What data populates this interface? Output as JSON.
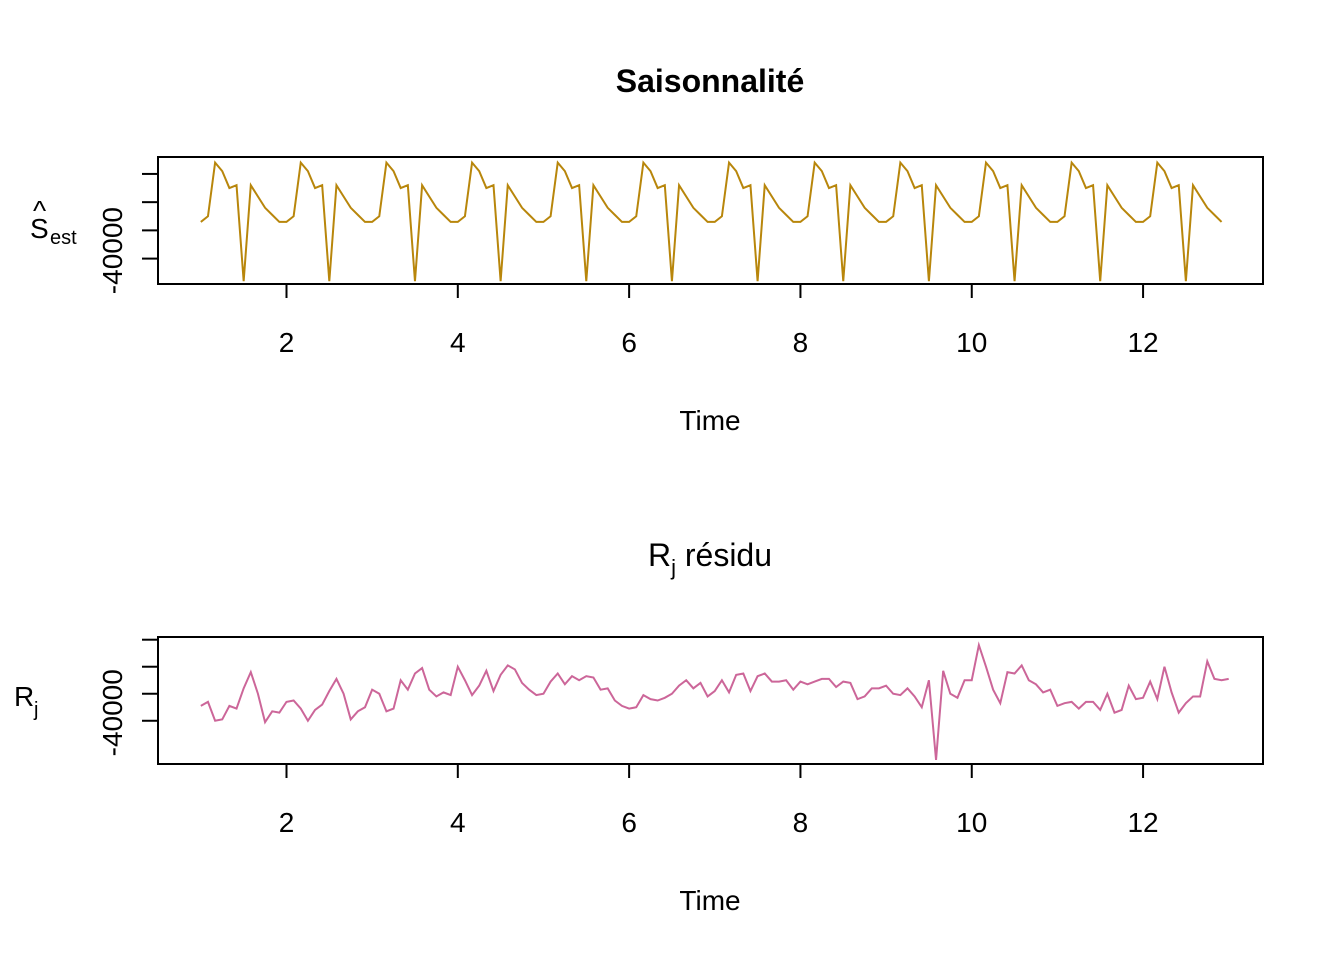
{
  "chart_data": [
    {
      "type": "line",
      "title": "Saisonnalité",
      "title_bold": true,
      "xlabel": "Time",
      "ylabel_main": "S",
      "ylabel_hat": "^",
      "ylabel_sub": "est",
      "xlim": [
        0.5,
        13.4
      ],
      "ylim": [
        -49000,
        -4000
      ],
      "xticks": [
        2,
        4,
        6,
        8,
        10,
        12
      ],
      "xtick_labels": [
        "2",
        "4",
        "6",
        "8",
        "10",
        "12"
      ],
      "yticks": [
        -40000,
        -30000,
        -20000,
        -10000
      ],
      "ytick_labels": [
        "-40000",
        "",
        "",
        ""
      ],
      "color": "#b8860b",
      "period": [
        -27000,
        -25000,
        -6000,
        -9000,
        -15000,
        -14000,
        -48000,
        -14000,
        -18000,
        -22000,
        -24500,
        -27000
      ],
      "x_start": 1.0,
      "x_step": 0.08333,
      "n_periods": 12,
      "n_points": 144,
      "grid": false
    },
    {
      "type": "line",
      "title_main": "R",
      "title_sub": "j",
      "title_rest": " résidu",
      "xlabel": "Time",
      "ylabel_main": "R",
      "ylabel_sub": "j",
      "xlim": [
        0.5,
        13.4
      ],
      "ylim": [
        -56000,
        -9000
      ],
      "xticks": [
        2,
        4,
        6,
        8,
        10,
        12
      ],
      "xtick_labels": [
        "2",
        "4",
        "6",
        "8",
        "10",
        "12"
      ],
      "yticks": [
        -40000,
        -30000,
        -20000,
        -10000
      ],
      "ytick_labels": [
        "-40000",
        "",
        "",
        ""
      ],
      "color": "#cc6699",
      "x_start": 1.0,
      "x_step": 0.08333,
      "values": [
        -34500,
        -33000,
        -40000,
        -39500,
        -34500,
        -35500,
        -28000,
        -22000,
        -30000,
        -40500,
        -36500,
        -37000,
        -33000,
        -32500,
        -35500,
        -40000,
        -36000,
        -34000,
        -29000,
        -24500,
        -30000,
        -39500,
        -36500,
        -35000,
        -28500,
        -30000,
        -36500,
        -35500,
        -25000,
        -28500,
        -22500,
        -20500,
        -28500,
        -31000,
        -29500,
        -30500,
        -20000,
        -25000,
        -30500,
        -27000,
        -21500,
        -29000,
        -23000,
        -19500,
        -21000,
        -26000,
        -28500,
        -30500,
        -30000,
        -25500,
        -22500,
        -26500,
        -23500,
        -25000,
        -23500,
        -24000,
        -28500,
        -28000,
        -32500,
        -34500,
        -35500,
        -35000,
        -30500,
        -32000,
        -32500,
        -31500,
        -30000,
        -27000,
        -25000,
        -28000,
        -26000,
        -31000,
        -29000,
        -25000,
        -29500,
        -23000,
        -22500,
        -29000,
        -23500,
        -22500,
        -25500,
        -25500,
        -25000,
        -28500,
        -25500,
        -26500,
        -25500,
        -24500,
        -24500,
        -27500,
        -25500,
        -26000,
        -32000,
        -31000,
        -28000,
        -28000,
        -27000,
        -30000,
        -30500,
        -28000,
        -31000,
        -35000,
        -25000,
        -54500,
        -21500,
        -30000,
        -31500,
        -25000,
        -25000,
        -12000,
        -20000,
        -28500,
        -33500,
        -22000,
        -22500,
        -19500,
        -25000,
        -26500,
        -29500,
        -28500,
        -34500,
        -33500,
        -33000,
        -35500,
        -33000,
        -33000,
        -36000,
        -30000,
        -37000,
        -36000,
        -27000,
        -32000,
        -31500,
        -25500,
        -32000,
        -20000,
        -29500,
        -37000,
        -33500,
        -31000,
        -31000,
        -18000,
        -24500,
        -25000,
        -24500
      ],
      "grid": false
    }
  ]
}
